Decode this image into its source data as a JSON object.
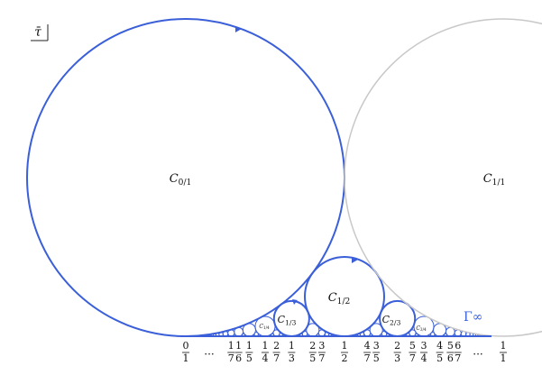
{
  "corner_label": "τ̄",
  "circle_labels": [
    {
      "name": "C",
      "sub": "0/1"
    },
    {
      "name": "C",
      "sub": "1/1"
    },
    {
      "name": "C",
      "sub": "1/2"
    },
    {
      "name": "C",
      "sub": "1/3"
    },
    {
      "name": "C",
      "sub": "2/3"
    },
    {
      "name": "C",
      "sub": "1/4"
    },
    {
      "name": "C",
      "sub": "3/4"
    }
  ],
  "gamma_label": "Γ∞",
  "left_ellipsis": "...",
  "right_ellipsis": "...",
  "fractions": [
    {
      "num": 0,
      "den": 1
    },
    {
      "num": 1,
      "den": 7
    },
    {
      "num": 1,
      "den": 6
    },
    {
      "num": 1,
      "den": 5
    },
    {
      "num": 1,
      "den": 4
    },
    {
      "num": 2,
      "den": 7
    },
    {
      "num": 1,
      "den": 3
    },
    {
      "num": 2,
      "den": 5
    },
    {
      "num": 3,
      "den": 7
    },
    {
      "num": 1,
      "den": 2
    },
    {
      "num": 4,
      "den": 7
    },
    {
      "num": 3,
      "den": 5
    },
    {
      "num": 2,
      "den": 3
    },
    {
      "num": 5,
      "den": 7
    },
    {
      "num": 3,
      "den": 4
    },
    {
      "num": 4,
      "den": 5
    },
    {
      "num": 5,
      "den": 6
    },
    {
      "num": 6,
      "den": 7
    },
    {
      "num": 1,
      "den": 1
    }
  ]
}
